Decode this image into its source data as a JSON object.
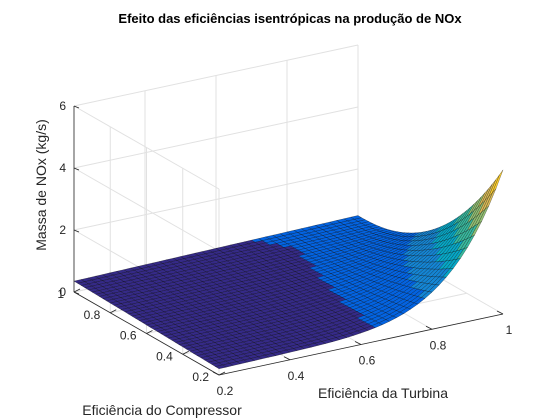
{
  "chart_data": {
    "type": "surface",
    "title": "Efeito das eficiências isentrópicas na produção de NOx",
    "xlabel": "Eficiência da Turbina",
    "ylabel": "Eficiência do Compressor",
    "zlabel": "Massa de NOx (kg/s)",
    "xlim": [
      0.2,
      1
    ],
    "ylim": [
      0.2,
      1
    ],
    "zlim": [
      0,
      6
    ],
    "x_ticks": [
      "0.2",
      "0.4",
      "0.6",
      "0.8",
      "1"
    ],
    "y_ticks": [
      "0.2",
      "0.4",
      "0.6",
      "0.8",
      "1"
    ],
    "z_ticks": [
      "0",
      "2",
      "4",
      "6"
    ],
    "grid": true,
    "colormap": "parula",
    "surface_points": [
      {
        "x": 0.2,
        "y": 1.0,
        "z": 0.35
      },
      {
        "x": 1.0,
        "y": 1.0,
        "z": 0.5
      },
      {
        "x": 0.2,
        "y": 0.2,
        "z": 0.2
      },
      {
        "x": 0.6,
        "y": 0.4,
        "z": 0.3
      },
      {
        "x": 1.0,
        "y": 0.2,
        "z": 4.8
      }
    ]
  }
}
